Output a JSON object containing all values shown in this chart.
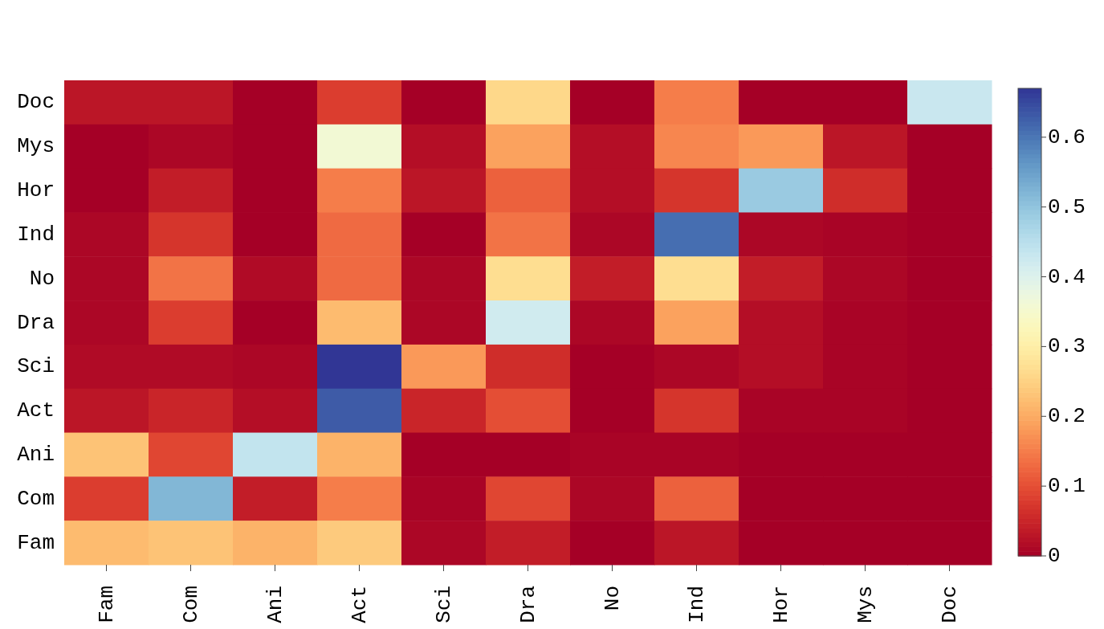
{
  "chart_data": {
    "type": "heatmap",
    "categories": [
      "Fam",
      "Com",
      "Ani",
      "Act",
      "Sci",
      "Dra",
      "No",
      "Ind",
      "Hor",
      "Mys",
      "Doc"
    ],
    "y_categories": [
      "Doc",
      "Mys",
      "Hor",
      "Ind",
      "No",
      "Dra",
      "Sci",
      "Act",
      "Ani",
      "Com",
      "Fam"
    ],
    "cells": [
      [
        0.03,
        0.03,
        0,
        0.08,
        0,
        0.26,
        0,
        0.15,
        0,
        0,
        0.43
      ],
      [
        0,
        0.01,
        0,
        0.36,
        0.02,
        0.19,
        0.02,
        0.16,
        0.18,
        0.03,
        0
      ],
      [
        0,
        0.04,
        0,
        0.15,
        0.03,
        0.12,
        0.02,
        0.07,
        0.49,
        0.06,
        0
      ],
      [
        0.01,
        0.07,
        0,
        0.13,
        0,
        0.14,
        0.01,
        0.61,
        0.01,
        0.005,
        0
      ],
      [
        0.01,
        0.14,
        0.015,
        0.13,
        0.01,
        0.27,
        0.04,
        0.27,
        0.04,
        0.01,
        0
      ],
      [
        0.01,
        0.08,
        0,
        0.22,
        0.01,
        0.42,
        0.01,
        0.19,
        0.02,
        0.005,
        0
      ],
      [
        0.015,
        0.015,
        0.01,
        0.67,
        0.18,
        0.06,
        0,
        0.01,
        0.02,
        0.005,
        0
      ],
      [
        0.03,
        0.05,
        0.02,
        0.63,
        0.05,
        0.1,
        0,
        0.07,
        0.005,
        0.005,
        0
      ],
      [
        0.23,
        0.09,
        0.44,
        0.21,
        0,
        0,
        0.005,
        0.005,
        0,
        0,
        0
      ],
      [
        0.08,
        0.52,
        0.04,
        0.15,
        0.005,
        0.09,
        0.01,
        0.12,
        0,
        0,
        0
      ],
      [
        0.22,
        0.23,
        0.21,
        0.24,
        0.01,
        0.04,
        0,
        0.03,
        0,
        0,
        0
      ]
    ],
    "clim": [
      0,
      0.67
    ],
    "cticks": [
      {
        "value": 0,
        "label": "0"
      },
      0.1,
      0.2,
      0.3,
      0.4,
      0.5,
      0.6
    ]
  }
}
